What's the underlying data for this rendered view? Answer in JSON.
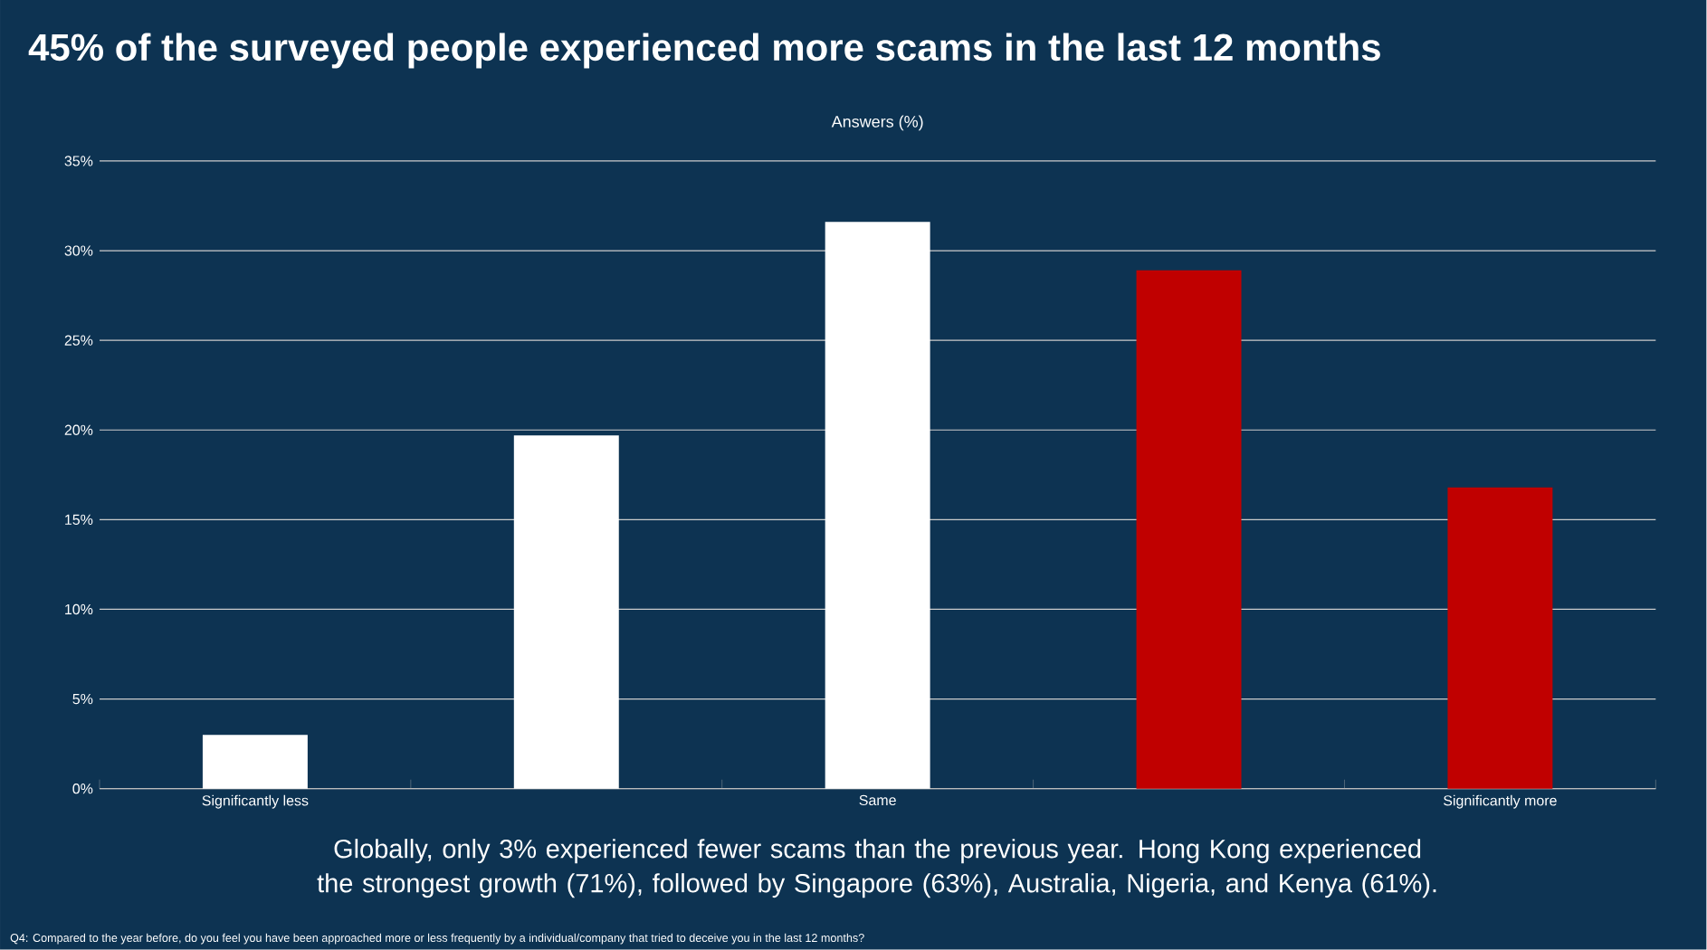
{
  "chart_data": {
    "type": "bar",
    "title": "45% of the surveyed people experienced more scams in the last 12 months",
    "subtitle": "Answers (%)",
    "categories": [
      "Significantly less",
      null,
      "Same",
      null,
      "Significantly more"
    ],
    "values": [
      3.0,
      19.7,
      31.6,
      28.9,
      16.8
    ],
    "colors": [
      "#ffffff",
      "#ffffff",
      "#ffffff",
      "#c00000",
      "#c00000"
    ],
    "ylim": [
      0,
      35
    ],
    "yticks": [
      {
        "value": 0,
        "label": "0%"
      },
      {
        "value": 5,
        "label": "5%"
      },
      {
        "value": 10,
        "label": "10%"
      },
      {
        "value": 15,
        "label": "15%"
      },
      {
        "value": 20,
        "label": "20%"
      },
      {
        "value": 25,
        "label": "25%"
      },
      {
        "value": 30,
        "label": "30%"
      },
      {
        "value": 35,
        "label": "35%"
      }
    ],
    "grid": "y",
    "annotations": [
      "Globally, only 3% experienced fewer scams than the previous year. Hong Kong experienced the strongest growth (71%), followed by Singapore (63%), Australia, Nigeria, and Kenya (61%).",
      "Q4: Compared to the year before, do you feel you have been approached more or less frequently by a individual/company that tried to deceive you in the last 12 months?"
    ]
  }
}
